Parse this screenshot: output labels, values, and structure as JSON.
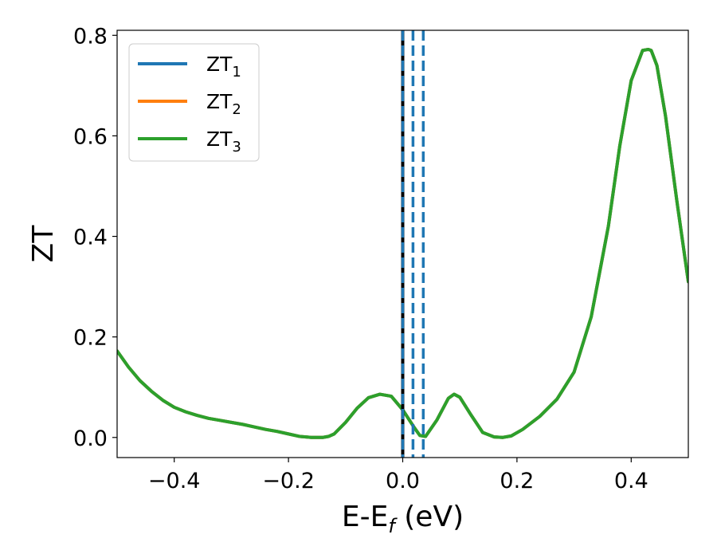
{
  "chart_data": {
    "type": "line",
    "xlabel": "E-E",
    "xlabel_sub": "f",
    "xlabel_unit": " (eV)",
    "ylabel": "ZT",
    "xlim": [
      -0.5,
      0.5
    ],
    "ylim": [
      -0.04,
      0.81
    ],
    "xticks": [
      -0.4,
      -0.2,
      0.0,
      0.2,
      0.4
    ],
    "xtick_labels": [
      "−0.4",
      "−0.2",
      "0.0",
      "0.2",
      "0.4"
    ],
    "yticks": [
      0.0,
      0.2,
      0.4,
      0.6,
      0.8
    ],
    "ytick_labels": [
      "0.0",
      "0.2",
      "0.4",
      "0.6",
      "0.8"
    ],
    "grid": false,
    "legend_position": "top-left",
    "series": [
      {
        "name": "ZT",
        "sub": "1",
        "color": "#1f77b4"
      },
      {
        "name": "ZT",
        "sub": "2",
        "color": "#ff7f0e"
      },
      {
        "name": "ZT",
        "sub": "3",
        "color": "#2ca02c"
      }
    ],
    "x": [
      -0.5,
      -0.48,
      -0.46,
      -0.44,
      -0.42,
      -0.4,
      -0.38,
      -0.36,
      -0.34,
      -0.32,
      -0.3,
      -0.28,
      -0.26,
      -0.24,
      -0.22,
      -0.2,
      -0.18,
      -0.16,
      -0.15,
      -0.14,
      -0.13,
      -0.12,
      -0.1,
      -0.08,
      -0.06,
      -0.04,
      -0.02,
      0.0,
      0.02,
      0.03,
      0.04,
      0.06,
      0.08,
      0.09,
      0.1,
      0.12,
      0.14,
      0.16,
      0.175,
      0.19,
      0.21,
      0.24,
      0.27,
      0.3,
      0.33,
      0.36,
      0.38,
      0.4,
      0.42,
      0.43,
      0.435,
      0.445,
      0.46,
      0.48,
      0.5
    ],
    "y": [
      0.172,
      0.14,
      0.113,
      0.092,
      0.074,
      0.06,
      0.051,
      0.044,
      0.038,
      0.034,
      0.03,
      0.026,
      0.021,
      0.016,
      0.012,
      0.007,
      0.002,
      0.0,
      0.0,
      0.0,
      0.002,
      0.007,
      0.03,
      0.058,
      0.079,
      0.086,
      0.082,
      0.055,
      0.02,
      0.004,
      0.002,
      0.035,
      0.078,
      0.086,
      0.08,
      0.044,
      0.01,
      0.001,
      0.0,
      0.003,
      0.016,
      0.042,
      0.076,
      0.13,
      0.24,
      0.42,
      0.58,
      0.71,
      0.77,
      0.772,
      0.77,
      0.74,
      0.64,
      0.47,
      0.31
    ],
    "vlines": [
      {
        "x": 0.0,
        "style": "solid",
        "color": "#000000"
      },
      {
        "x": 0.0,
        "style": "dashed",
        "color": "#1f77b4"
      },
      {
        "x": 0.018,
        "style": "dashed",
        "color": "#1f77b4"
      },
      {
        "x": 0.036,
        "style": "dashed",
        "color": "#1f77b4"
      }
    ]
  }
}
